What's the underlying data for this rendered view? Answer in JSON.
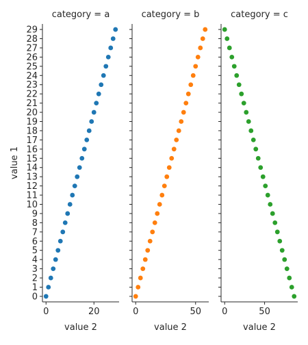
{
  "chart_data": {
    "type": "scatter",
    "ylabel": "value 1",
    "xlabel": "value 2",
    "y_ticks": [
      0,
      1,
      2,
      3,
      4,
      5,
      6,
      7,
      8,
      9,
      10,
      11,
      12,
      13,
      14,
      15,
      16,
      17,
      18,
      19,
      20,
      21,
      22,
      23,
      24,
      25,
      26,
      27,
      28,
      29
    ],
    "ylim": [
      -0.6,
      29.6
    ],
    "panels": [
      {
        "title": "category = a",
        "color": "#1f77b4",
        "xlim": [
          -1.5,
          30.5
        ],
        "x_ticks": [
          0,
          20
        ],
        "x": [
          0,
          1,
          2,
          3,
          4,
          5,
          6,
          7,
          8,
          9,
          10,
          11,
          12,
          13,
          14,
          15,
          16,
          17,
          18,
          19,
          20,
          21,
          22,
          23,
          24,
          25,
          26,
          27,
          28,
          29
        ],
        "y": [
          0,
          1,
          2,
          3,
          4,
          5,
          6,
          7,
          8,
          9,
          10,
          11,
          12,
          13,
          14,
          15,
          16,
          17,
          18,
          19,
          20,
          21,
          22,
          23,
          24,
          25,
          26,
          27,
          28,
          29
        ]
      },
      {
        "title": "category = b",
        "color": "#ff7f0e",
        "xlim": [
          -3,
          61
        ],
        "x_ticks": [
          0,
          50
        ],
        "x": [
          0,
          2,
          4,
          6,
          8,
          10,
          12,
          14,
          16,
          18,
          20,
          22,
          24,
          26,
          28,
          30,
          32,
          34,
          36,
          38,
          40,
          42,
          44,
          46,
          48,
          50,
          52,
          54,
          56,
          58
        ],
        "y": [
          0,
          1,
          2,
          3,
          4,
          5,
          6,
          7,
          8,
          9,
          10,
          11,
          12,
          13,
          14,
          15,
          16,
          17,
          18,
          19,
          20,
          21,
          22,
          23,
          24,
          25,
          26,
          27,
          28,
          29
        ]
      },
      {
        "title": "category = c",
        "color": "#2ca02c",
        "xlim": [
          -4.5,
          91.5
        ],
        "x_ticks": [
          0,
          50
        ],
        "x": [
          0,
          3,
          6,
          9,
          12,
          15,
          18,
          21,
          24,
          27,
          30,
          33,
          36,
          39,
          42,
          45,
          48,
          51,
          54,
          57,
          60,
          63,
          66,
          69,
          72,
          75,
          78,
          81,
          84,
          87
        ],
        "y": [
          29,
          28,
          27,
          26,
          25,
          24,
          23,
          22,
          21,
          20,
          19,
          18,
          17,
          16,
          15,
          14,
          13,
          12,
          11,
          10,
          9,
          8,
          7,
          6,
          5,
          4,
          3,
          2,
          1,
          0
        ]
      }
    ]
  }
}
